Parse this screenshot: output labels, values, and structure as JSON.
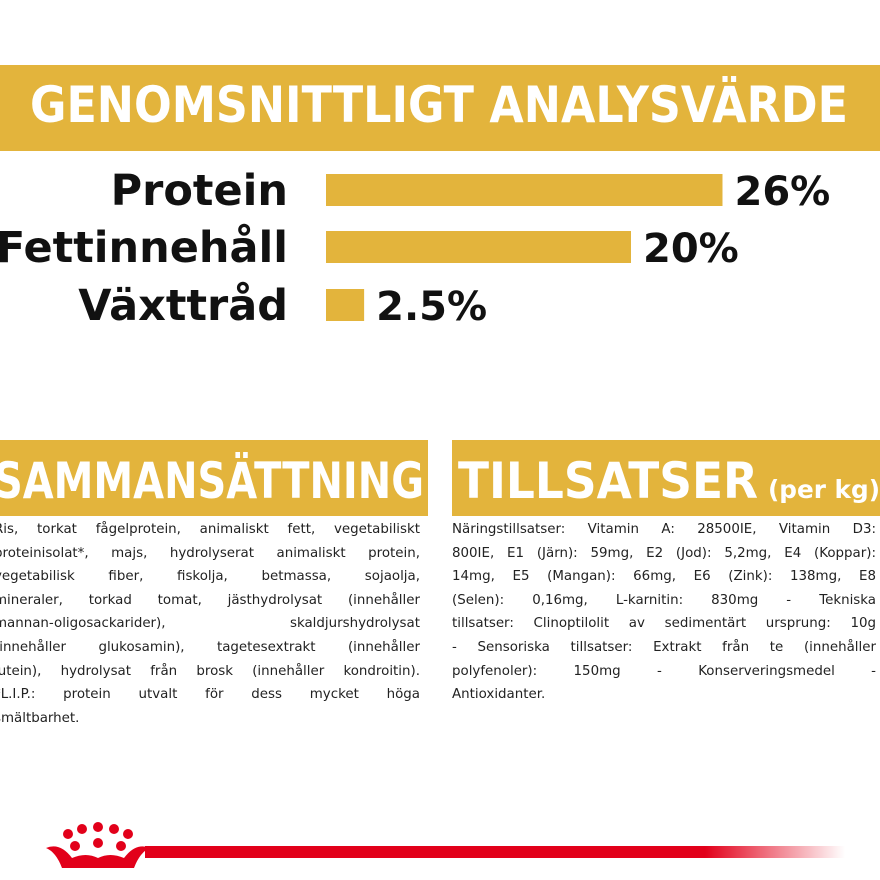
{
  "chart_data": {
    "type": "bar",
    "orientation": "horizontal",
    "title": "GENOMSNITTLIGT ANALYSVÄRDE",
    "categories": [
      "Protein",
      "Fettinnehåll",
      "Växttråd"
    ],
    "values": [
      26,
      20,
      2.5
    ],
    "value_labels": [
      "26%",
      "20%",
      "2.5%"
    ],
    "color": "#e3b43c"
  },
  "composition": {
    "title": "SAMMANSÄTTNING",
    "lines": [
      "Ris, torkat fågelprotein, animaliskt fett, vegetabiliskt",
      "proteinisolat*, majs, hydrolyserat animaliskt protein,",
      "vegetabilisk fiber, fiskolja, betmassa, sojaolja,",
      "mineraler, torkad tomat, jästhydrolysat (innehåller",
      "mannan-oligosackarider), skaldjurshydrolysat",
      "(innehåller glukosamin), tagetesextrakt (innehåller",
      "lutein), hydrolysat från brosk (innehåller kondroitin).",
      "*L.I.P.: protein utvalt för dess mycket höga",
      "smältbarhet."
    ]
  },
  "additives": {
    "title": "TILLSATSER",
    "title_suffix": "(per kg)",
    "lines": [
      "Näringstillsatser: Vitamin A: 28500IE, Vitamin D3:",
      "800IE, E1 (Järn): 59mg, E2 (Jod): 5,2mg, E4 (Koppar):",
      "14mg, E5 (Mangan): 66mg, E6 (Zink): 138mg, E8",
      "(Selen): 0,16mg, L-karnitin: 830mg - Tekniska",
      "tillsatser: Clinoptilolit av sedimentärt ursprung: 10g",
      "- Sensoriska tillsatser: Extrakt från te (innehåller",
      "polyfenoler): 150mg - Konserveringsmedel -",
      "Antioxidanter."
    ]
  }
}
